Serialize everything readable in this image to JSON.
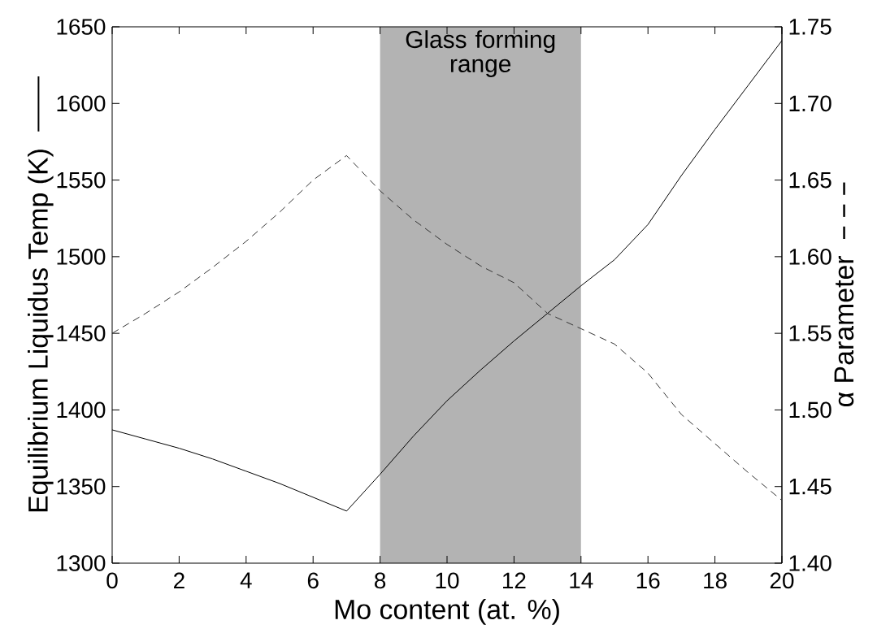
{
  "chart_data": {
    "type": "line",
    "xlabel": "Mo content (at. %)",
    "ylabel": "Equilibrium Liquidus Temp (K)",
    "y2label": "α Parameter",
    "x": [
      0,
      1,
      2,
      3,
      4,
      5,
      6,
      7,
      8,
      9,
      10,
      11,
      12,
      13,
      14,
      15,
      16,
      17,
      18,
      19,
      20
    ],
    "series": [
      {
        "color": "#000000",
        "line_style": "solid",
        "values": [
          1387,
          1381,
          1375,
          1368,
          1360,
          1352,
          1343,
          1334,
          1358,
          1383,
          1406,
          1426,
          1445,
          1463,
          1481,
          1498,
          1521,
          1553,
          1583,
          1612,
          1641
        ]
      },
      {
        "color": "#333333",
        "line_style": "dashed",
        "axis": "y2",
        "values": [
          1.55,
          1.563,
          1.577,
          1.593,
          1.61,
          1.629,
          1.65,
          1.666,
          1.643,
          1.624,
          1.608,
          1.594,
          1.583,
          1.563,
          1.553,
          1.543,
          1.524,
          1.497,
          1.478,
          1.459,
          1.441
        ]
      }
    ],
    "xlim": [
      0,
      20
    ],
    "xticks": [
      0,
      2,
      4,
      6,
      8,
      10,
      12,
      14,
      16,
      18,
      20
    ],
    "ylim": [
      1300,
      1650
    ],
    "yticks": [
      1300,
      1350,
      1400,
      1450,
      1500,
      1550,
      1600,
      1650
    ],
    "y2lim": [
      1.4,
      1.75
    ],
    "y2ticks": [
      {
        "value": 1.4,
        "label": "1.40"
      },
      {
        "value": 1.45,
        "label": "1.45"
      },
      {
        "value": 1.5,
        "label": "1.50"
      },
      {
        "value": 1.55,
        "label": "1.55"
      },
      {
        "value": 1.6,
        "label": "1.60"
      },
      {
        "value": 1.65,
        "label": "1.65"
      },
      {
        "value": 1.7,
        "label": "1.70"
      },
      {
        "value": 1.75,
        "label": "1.75"
      }
    ],
    "bands": [
      {
        "axis": "x",
        "from": 8,
        "to": 14,
        "label": "Glass forming range",
        "color": "#b3b3b3"
      }
    ],
    "grid": false,
    "marker": "none"
  }
}
